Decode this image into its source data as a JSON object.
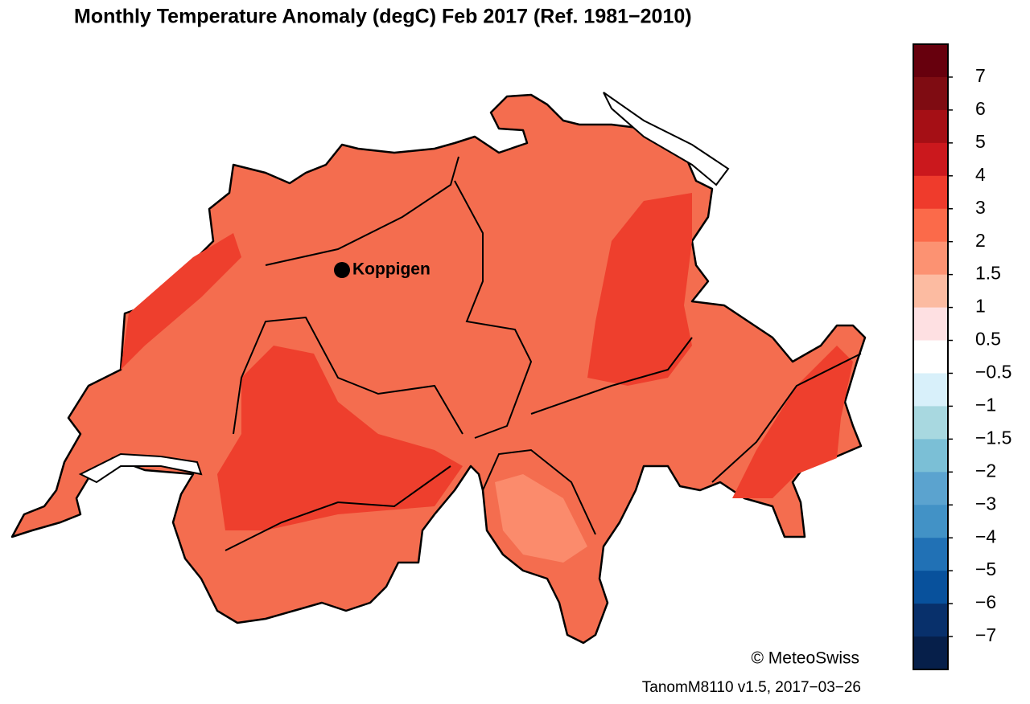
{
  "title": "Monthly Temperature Anomaly (degC) Feb 2017  (Ref. 1981−2010)",
  "station": "Koppigen",
  "copyright": "© MeteoSwiss",
  "footer": "TanomM8110 v1.5, 2017−03−26",
  "colorbar": {
    "colors": [
      "#67000d",
      "#7f0c12",
      "#a50f15",
      "#cb181d",
      "#ef3b2c",
      "#fb6a4a",
      "#fc9272",
      "#fcbba1",
      "#fee0e2",
      "#ffffff",
      "#d8f0fa",
      "#a8d8e0",
      "#7bbfd6",
      "#5ba3cf",
      "#4292c6",
      "#2171b5",
      "#08519c",
      "#08306b",
      "#061f4a"
    ],
    "ticks": [
      7,
      6,
      5,
      4,
      3,
      2,
      1.5,
      1,
      0.5,
      {
        "value": -0.5,
        "label": "−0.5"
      },
      {
        "value": -1,
        "label": "−1"
      },
      {
        "value": -1.5,
        "label": "−1.5"
      },
      {
        "value": -2,
        "label": "−2"
      },
      {
        "value": -3,
        "label": "−3"
      },
      {
        "value": -4,
        "label": "−4"
      },
      {
        "value": -5,
        "label": "−5"
      },
      {
        "value": -6,
        "label": "−6"
      },
      {
        "value": -7,
        "label": "−7"
      }
    ]
  }
}
